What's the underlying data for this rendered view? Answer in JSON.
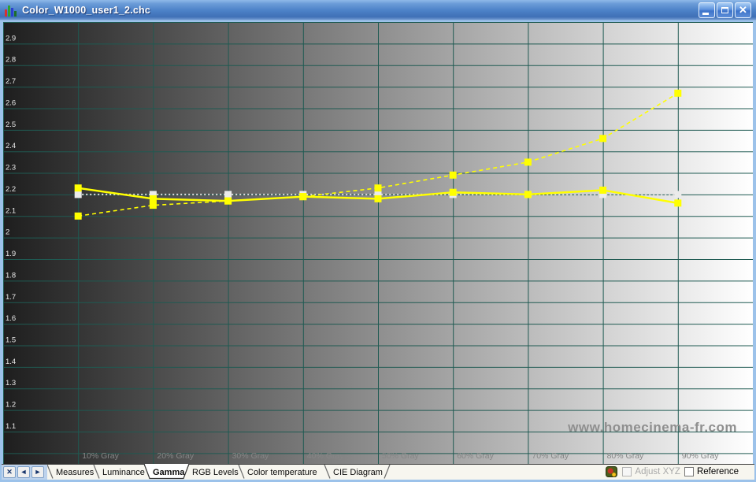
{
  "window": {
    "title": "Color_W1000_user1_2.chc",
    "buttons": {
      "close_glyph": "✕"
    }
  },
  "chart_data": {
    "type": "line",
    "categories": [
      "10% Gray",
      "20% Gray",
      "30% Gray",
      "40% Gray",
      "50% Gray",
      "60% Gray",
      "70% Gray",
      "80% Gray",
      "90% Gray"
    ],
    "x_percent": [
      10,
      20,
      30,
      40,
      50,
      60,
      70,
      80,
      90
    ],
    "ylim": [
      0.95,
      3.0
    ],
    "y_ticks": [
      2.9,
      2.8,
      2.7,
      2.6,
      2.5,
      2.4,
      2.3,
      2.2,
      2.1,
      2,
      1.9,
      1.8,
      1.7,
      1.6,
      1.5,
      1.4,
      1.3,
      1.2,
      1.1
    ],
    "grid": true,
    "grid_color": "#1f5a52",
    "tick_label_color": "#e8e8e8",
    "x_label_color": "#868686",
    "series": [
      {
        "name": "reference-gamma-2.2",
        "style": "dotted",
        "color": "#d9d9d9",
        "marker_color": "#ebebeb",
        "values": [
          2.2,
          2.2,
          2.2,
          2.2,
          2.2,
          2.2,
          2.2,
          2.2,
          2.2
        ]
      },
      {
        "name": "measured-gamma-dashed",
        "style": "dashed",
        "color": "#ffff00",
        "marker_color": "#ffff00",
        "values": [
          2.1,
          2.15,
          2.17,
          2.19,
          2.23,
          2.29,
          2.35,
          2.46,
          2.67
        ]
      },
      {
        "name": "measured-gamma-solid",
        "style": "solid",
        "color": "#ffff00",
        "marker_color": "#ffff00",
        "values": [
          2.23,
          2.18,
          2.17,
          2.19,
          2.18,
          2.21,
          2.2,
          2.22,
          2.16
        ]
      }
    ]
  },
  "tabs": {
    "nav": {
      "close": "✕",
      "prev": "◄",
      "next": "►"
    },
    "items": [
      {
        "label": "Measures",
        "active": false
      },
      {
        "label": "Luminance",
        "active": false
      },
      {
        "label": "Gamma",
        "active": true
      },
      {
        "label": "RGB Levels",
        "active": false
      },
      {
        "label": "Color temperature",
        "active": false
      },
      {
        "label": "CIE Diagram",
        "active": false
      }
    ]
  },
  "statusbar": {
    "adjust_xyz_label": "Adjust XYZ",
    "adjust_xyz_enabled": false,
    "adjust_xyz_checked": false,
    "reference_label": "Reference",
    "reference_checked": false
  },
  "watermark": "www.homecinema-fr.com"
}
